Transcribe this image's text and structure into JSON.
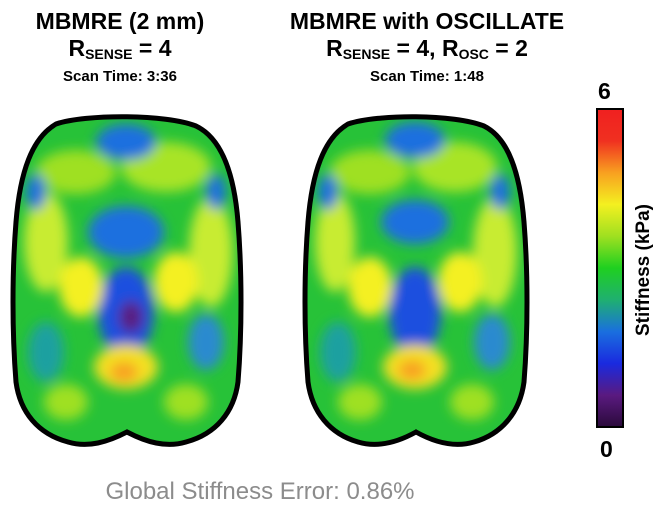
{
  "panels": [
    {
      "title": "MBMRE (2 mm)",
      "r_label": "R",
      "r_sub": "SENSE",
      "r_value": " = 4",
      "scan_time": "Scan Time: 3:36"
    },
    {
      "title": "MBMRE with OSCILLATE",
      "r_label": "R",
      "r_sub": "SENSE",
      "r_value": " = 4, R",
      "r_sub2": "OSC",
      "r_value2": " = 2",
      "scan_time": "Scan Time: 1:48"
    }
  ],
  "colorbar": {
    "max_label": "6",
    "min_label": "0",
    "title": "Stiffness (kPa)",
    "colors": [
      "#2a0a3a",
      "#5a1a80",
      "#1a2adf",
      "#1a6fdf",
      "#1fb070",
      "#1fd020",
      "#9fe020",
      "#f4f020",
      "#f8a020",
      "#f03020",
      "#f02020"
    ]
  },
  "footer": "Global Stiffness Error: 0.86%"
}
